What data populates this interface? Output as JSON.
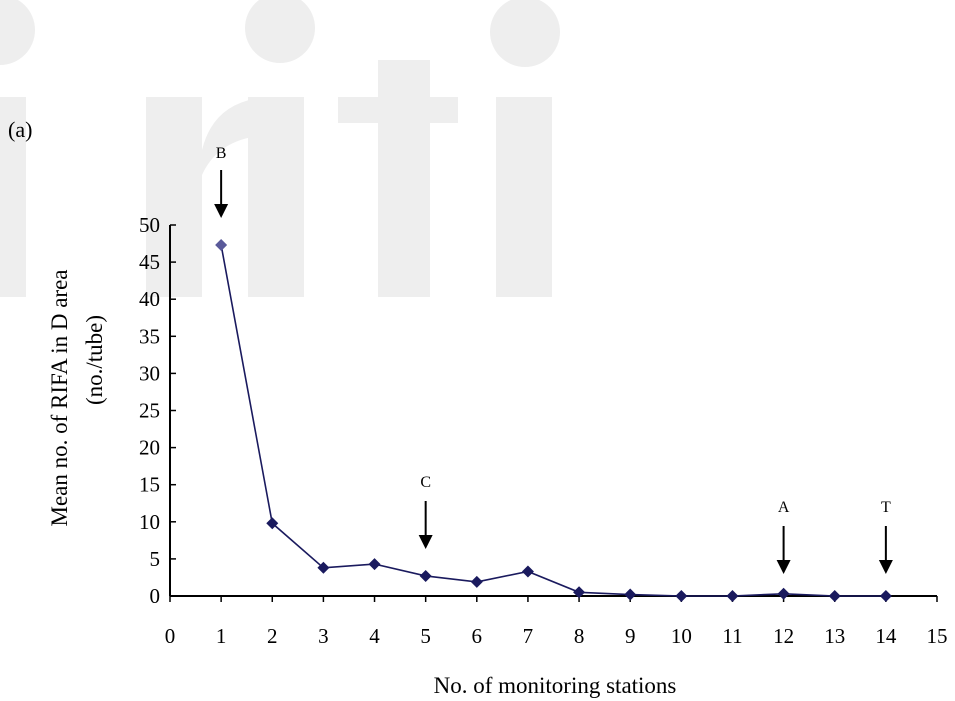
{
  "panel_label": "(a)",
  "watermark": "iriti",
  "colors": {
    "line": "#1a1a5e",
    "marker": "#1a1a5e",
    "first_marker": "#5a5a9a",
    "axis": "#000000",
    "watermark": "#eeeeee"
  },
  "chart_data": {
    "type": "line",
    "title": "",
    "xlabel": "No. of monitoring stations",
    "ylabel": "Mean no. of RIFA in D area",
    "ylabel_unit": "(no./tube)",
    "xlim": [
      0,
      15
    ],
    "ylim": [
      0,
      50
    ],
    "x_ticks": [
      "0",
      "1",
      "2",
      "3",
      "4",
      "5",
      "6",
      "7",
      "8",
      "9",
      "10",
      "11",
      "12",
      "13",
      "14",
      "15"
    ],
    "y_ticks": [
      "0",
      "5",
      "10",
      "15",
      "20",
      "25",
      "30",
      "35",
      "40",
      "45",
      "50"
    ],
    "grid": false,
    "legend": "none",
    "series": [
      {
        "x": [
          1,
          2,
          3,
          4,
          5,
          6,
          7,
          8,
          9,
          10,
          11,
          12,
          13,
          14
        ],
        "y": [
          47.3,
          9.8,
          3.8,
          4.3,
          2.7,
          1.9,
          3.3,
          0.5,
          0.2,
          0.0,
          0.0,
          0.3,
          0.0,
          0.0
        ]
      }
    ],
    "annotations": [
      {
        "label": "B",
        "x": 1
      },
      {
        "label": "C",
        "x": 5
      },
      {
        "label": "A",
        "x": 12
      },
      {
        "label": "T",
        "x": 14
      }
    ]
  }
}
